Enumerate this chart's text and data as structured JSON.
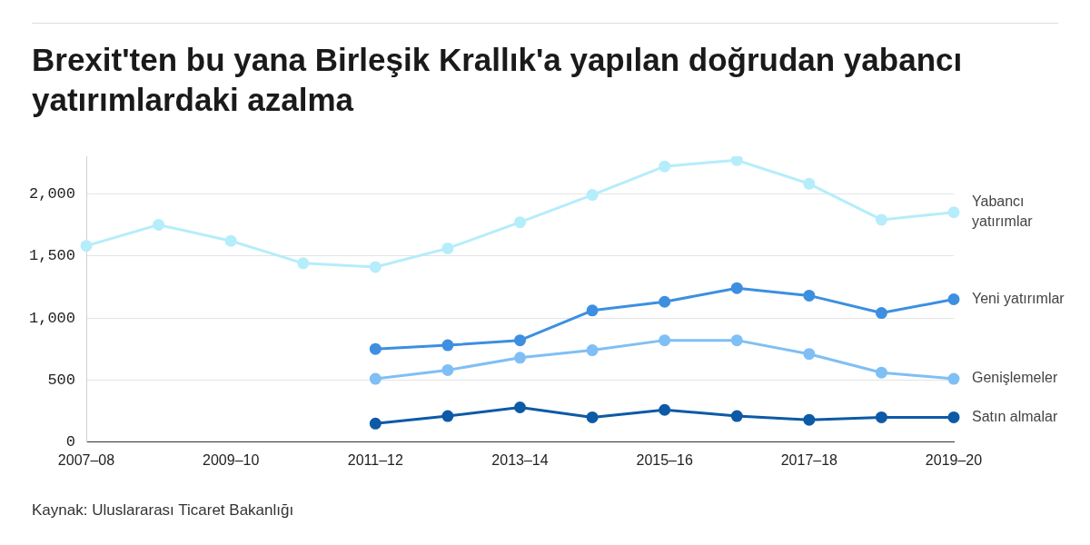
{
  "chart_data": {
    "type": "line",
    "title": "Brexit'ten bu yana Birleşik Krallık'a yapılan doğrudan yabancı yatırımlardaki azalma",
    "categories": [
      "2007–08",
      null,
      "2009–10",
      null,
      "2011–12",
      null,
      "2013–14",
      null,
      "2015–16",
      null,
      "2017–18",
      null,
      "2019–20"
    ],
    "series": [
      {
        "name": "Yabancı yatırımlar",
        "color": "#b5edfb",
        "values": [
          1580,
          1750,
          1620,
          1440,
          1410,
          1560,
          1770,
          1990,
          2220,
          2270,
          2080,
          1790,
          1850
        ]
      },
      {
        "name": "Yeni yatırımlar",
        "color": "#3d8fe0",
        "values": [
          null,
          null,
          null,
          null,
          750,
          780,
          820,
          1060,
          1130,
          1240,
          1180,
          1040,
          1150
        ]
      },
      {
        "name": "Genişlemeler",
        "color": "#7fbff5",
        "values": [
          null,
          null,
          null,
          null,
          510,
          580,
          680,
          740,
          820,
          820,
          710,
          560,
          510
        ]
      },
      {
        "name": "Satın almalar",
        "color": "#0d5aa7",
        "values": [
          null,
          null,
          null,
          null,
          150,
          210,
          280,
          200,
          260,
          210,
          180,
          200,
          200
        ]
      }
    ],
    "ylim": [
      0,
      2300
    ],
    "yticks": [
      {
        "value": 0,
        "label": "0"
      },
      {
        "value": 500,
        "label": "500"
      },
      {
        "value": 1000,
        "label": "1,000"
      },
      {
        "value": 1500,
        "label": "1,500"
      },
      {
        "value": 2000,
        "label": "2,000"
      }
    ],
    "grid": "y",
    "legend": false,
    "marker": "circle",
    "line_style": "solid",
    "annotations": [
      "Kaynak: Uluslararası Ticaret Bakanlığı"
    ]
  }
}
